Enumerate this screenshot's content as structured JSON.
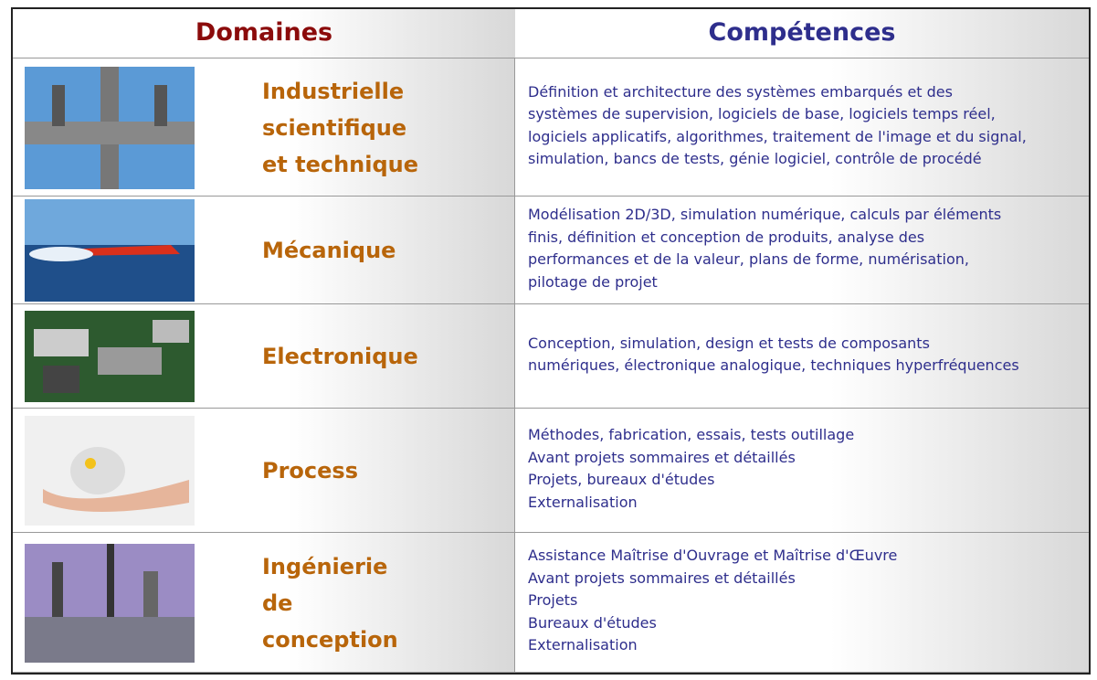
{
  "header": {
    "domains": "Domaines",
    "competences": "Compétences"
  },
  "rows": [
    {
      "domain": [
        "Industrielle",
        "scientifique",
        "et technique"
      ],
      "competences": [
        "Définition et architecture des systèmes embarqués et des",
        "systèmes de supervision, logiciels de base, logiciels temps réel,",
        "logiciels applicatifs, algorithmes, traitement de l'image et du signal,",
        "simulation, bancs de tests, génie logiciel, contrôle de procédé"
      ]
    },
    {
      "domain": [
        "Mécanique"
      ],
      "competences": [
        "Modélisation 2D/3D, simulation numérique, calculs par éléments",
        "finis, définition et conception de produits, analyse des",
        "performances et de la valeur, plans de forme, numérisation,",
        "pilotage de projet"
      ]
    },
    {
      "domain": [
        "Electronique"
      ],
      "competences": [
        "Conception, simulation, design et tests de composants",
        "numériques, électronique analogique, techniques hyperfréquences"
      ]
    },
    {
      "domain": [
        "Process"
      ],
      "competences": [
        "Méthodes, fabrication, essais, tests outillage",
        "Avant projets sommaires et détaillés",
        "Projets, bureaux d'études",
        "Externalisation"
      ]
    },
    {
      "domain": [
        "Ingénierie",
        "de",
        "conception"
      ],
      "competences": [
        "Assistance Maîtrise d'Ouvrage et Maîtrise d'Œuvre",
        "Avant projets sommaires et détaillés",
        "Projets",
        "Bureaux d'études",
        "Externalisation"
      ]
    }
  ]
}
